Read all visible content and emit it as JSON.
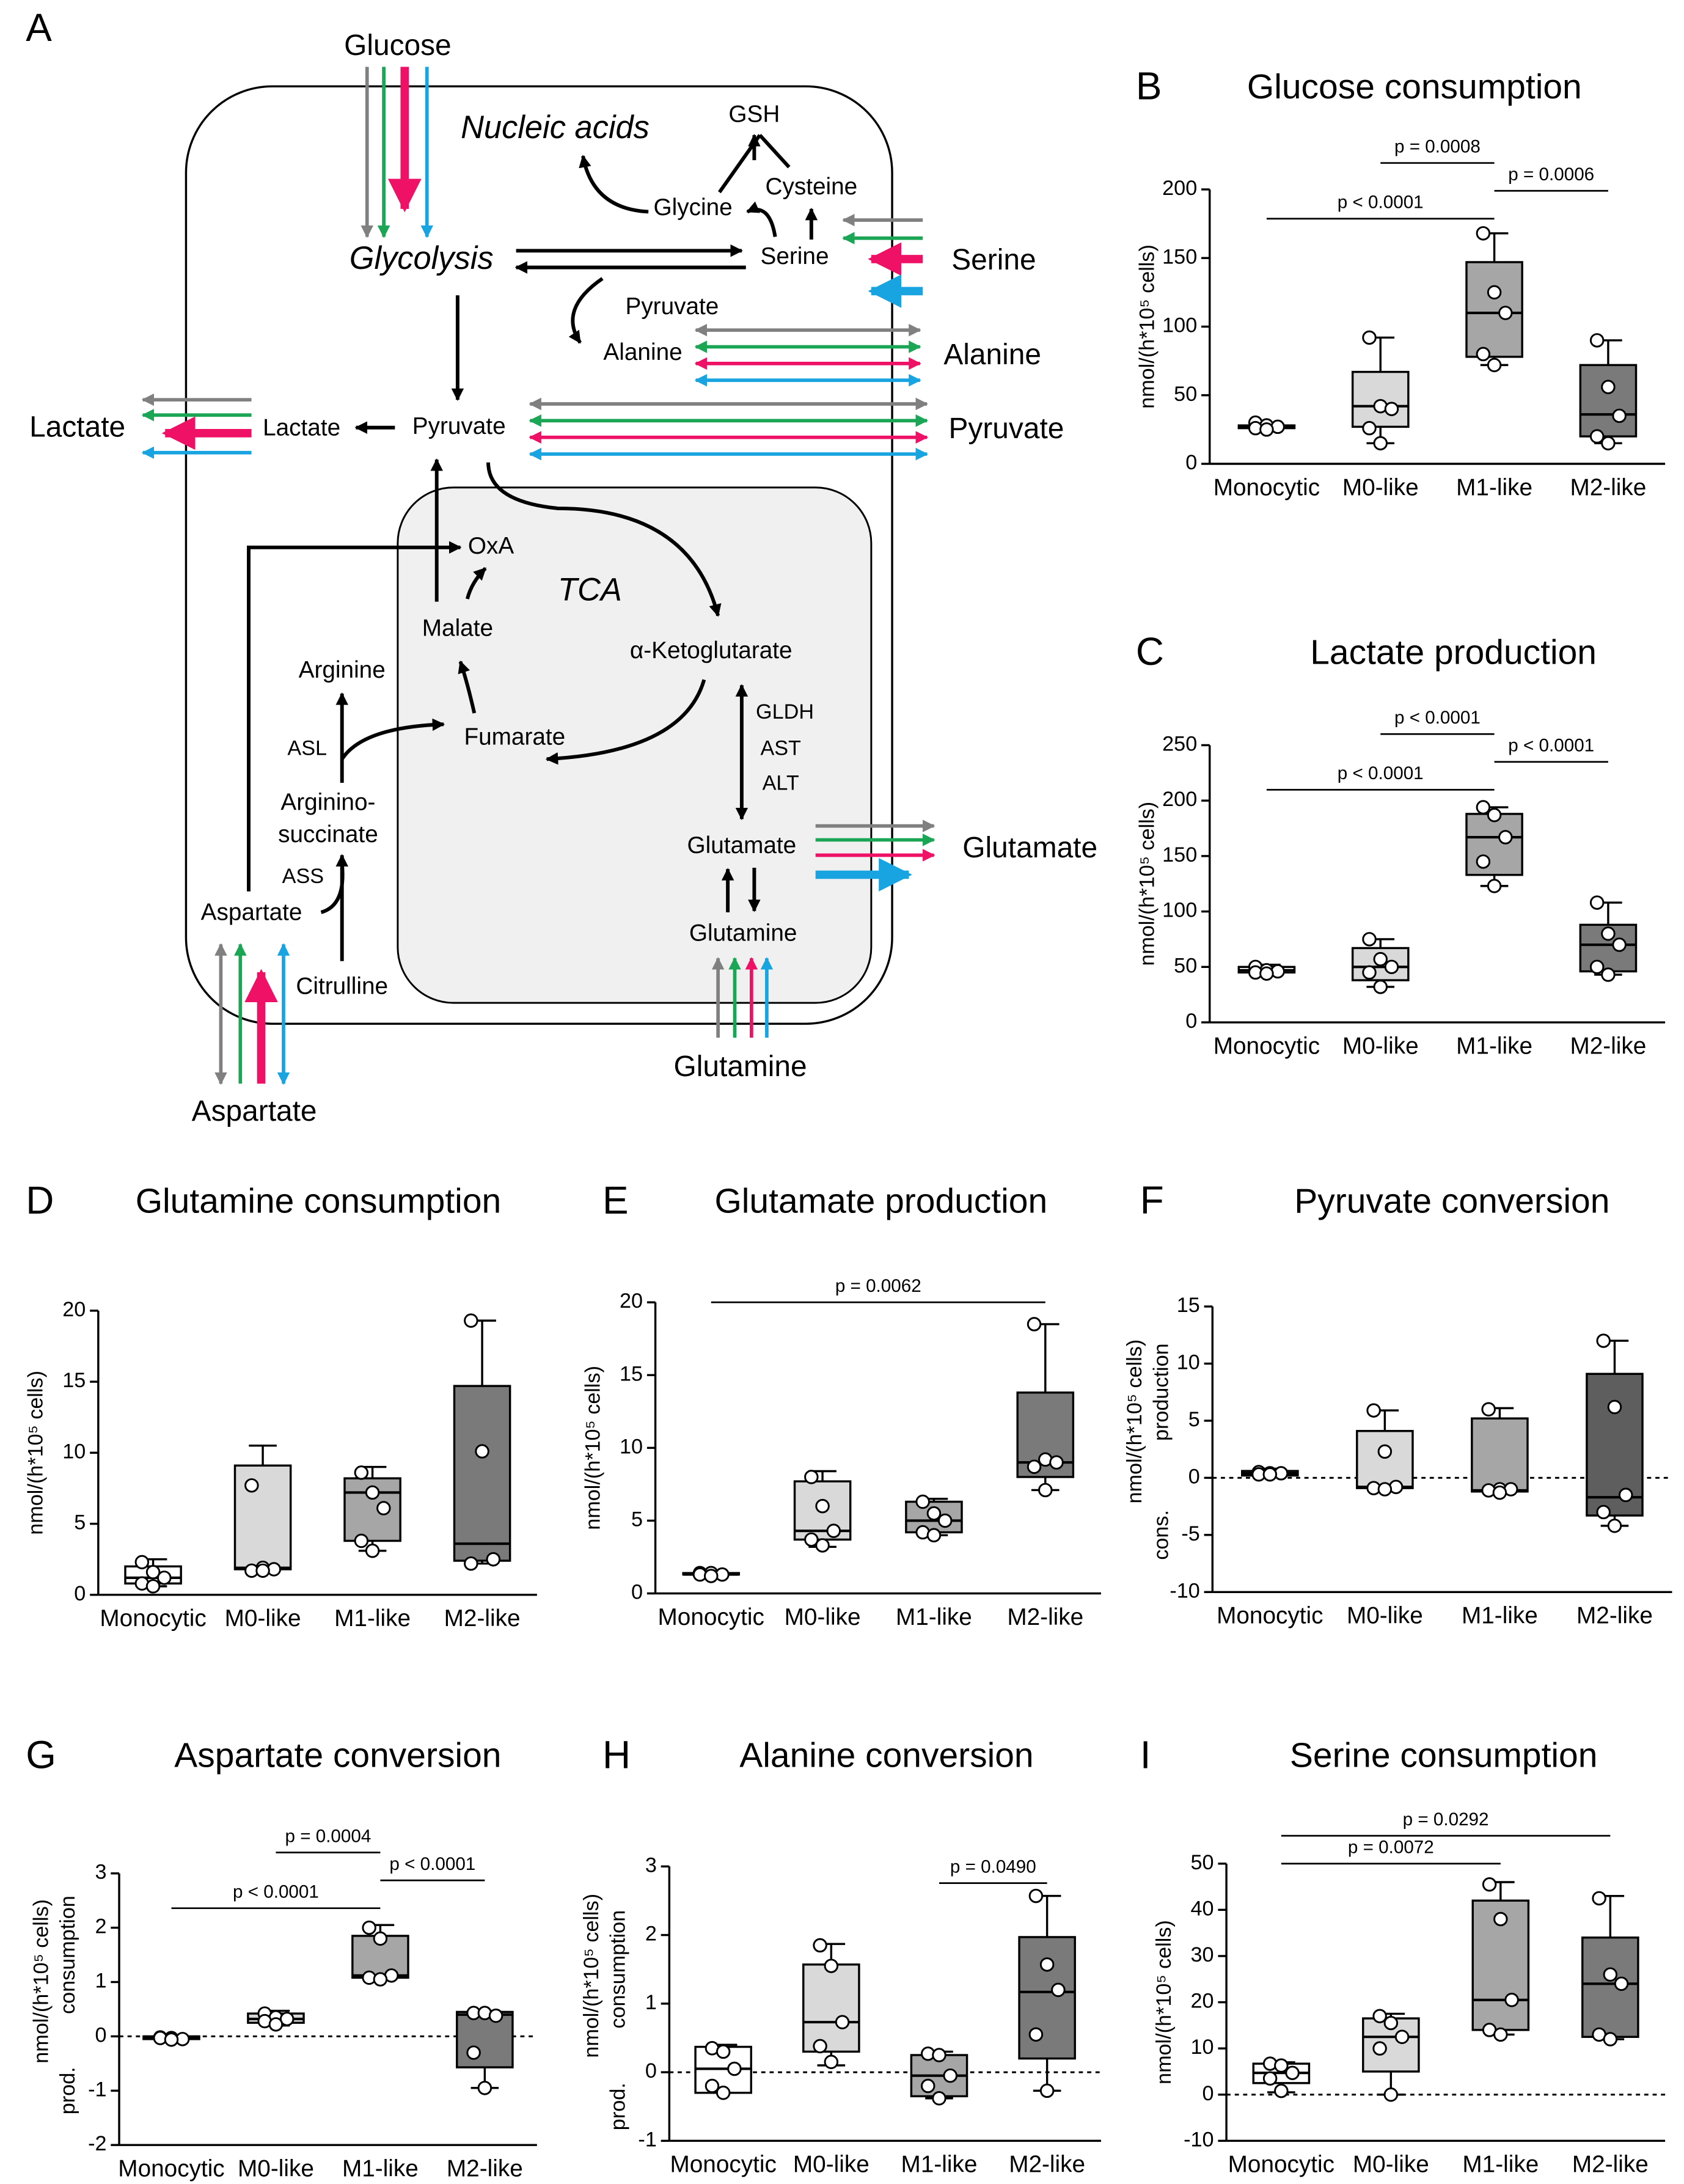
{
  "diagram": {
    "label": "A",
    "texts": {
      "glucose": "Glucose",
      "nucleic_acids": "Nucleic acids",
      "gsh": "GSH",
      "cysteine": "Cysteine",
      "glycine": "Glycine",
      "glycolysis": "Glycolysis",
      "serine_in": "Serine",
      "serine_out": "Serine",
      "pyruvate_small": "Pyruvate",
      "alanine_in": "Alanine",
      "alanine_out": "Alanine",
      "lactate_out": "Lactate",
      "lactate_in": "Lactate",
      "pyruvate_in": "Pyruvate",
      "pyruvate_out": "Pyruvate",
      "oxa": "OxA",
      "tca": "TCA",
      "malate": "Malate",
      "akg": "α-Ketoglutarate",
      "arginine": "Arginine",
      "asl": "ASL",
      "fumarate": "Fumarate",
      "gldh": "GLDH",
      "ast": "AST",
      "alt": "ALT",
      "argininosuccinate_1": "Arginino-",
      "argininosuccinate_2": "succinate",
      "ass": "ASS",
      "glutamate_in": "Glutamate",
      "glutamate_out": "Glutamate",
      "glutamine_in": "Glutamine",
      "glutamine_out": "Glutamine",
      "aspartate_in": "Aspartate",
      "citrulline": "Citrulline",
      "aspartate_out": "Aspartate"
    }
  },
  "chart_data": [
    {
      "type": "box",
      "label": "B",
      "title": "Glucose consumption",
      "y_label": "nmol/(h*10⁵ cells)",
      "categories": [
        "Monocytic",
        "M0-like",
        "M1-like",
        "M2-like"
      ],
      "box_colors": [
        "#ffffff",
        "#d9d9d9",
        "#a6a6a6",
        "#7a7a7a"
      ],
      "ylim": [
        0,
        200
      ],
      "yticks": [
        0,
        50,
        100,
        150,
        200
      ],
      "zero_line": false,
      "boxes": [
        {
          "min": 25,
          "q1": 26,
          "median": 27,
          "q3": 28,
          "max": 30,
          "points": [
            30,
            28,
            27,
            26,
            25
          ]
        },
        {
          "min": 15,
          "q1": 27,
          "median": 42,
          "q3": 67,
          "max": 92,
          "points": [
            92,
            42,
            40,
            26,
            15
          ]
        },
        {
          "min": 72,
          "q1": 78,
          "median": 110,
          "q3": 147,
          "max": 168,
          "points": [
            168,
            125,
            110,
            80,
            72
          ]
        },
        {
          "min": 15,
          "q1": 20,
          "median": 36,
          "q3": 72,
          "max": 90,
          "points": [
            90,
            56,
            35,
            20,
            15
          ]
        }
      ],
      "comparisons": [
        {
          "label": "p < 0.0001",
          "groups": [
            "Monocytic",
            "M1-like"
          ]
        },
        {
          "label": "p = 0.0006",
          "groups": [
            "M1-like",
            "M2-like"
          ]
        },
        {
          "label": "p = 0.0008",
          "groups": [
            "M0-like",
            "M1-like"
          ]
        }
      ]
    },
    {
      "type": "box",
      "label": "C",
      "title": "Lactate production",
      "y_label": "nmol/(h*10⁵ cells)",
      "categories": [
        "Monocytic",
        "M0-like",
        "M1-like",
        "M2-like"
      ],
      "box_colors": [
        "#ffffff",
        "#d9d9d9",
        "#a6a6a6",
        "#7a7a7a"
      ],
      "ylim": [
        0,
        250
      ],
      "yticks": [
        0,
        50,
        100,
        150,
        200,
        250
      ],
      "zero_line": false,
      "boxes": [
        {
          "min": 44,
          "q1": 45,
          "median": 47,
          "q3": 50,
          "max": 52,
          "points": [
            50,
            47,
            46,
            45,
            44
          ]
        },
        {
          "min": 32,
          "q1": 38,
          "median": 50,
          "q3": 67,
          "max": 75,
          "points": [
            75,
            57,
            50,
            45,
            32
          ]
        },
        {
          "min": 123,
          "q1": 133,
          "median": 167,
          "q3": 188,
          "max": 194,
          "points": [
            194,
            187,
            167,
            145,
            123
          ]
        },
        {
          "min": 43,
          "q1": 46,
          "median": 70,
          "q3": 88,
          "max": 108,
          "points": [
            108,
            80,
            70,
            50,
            43
          ]
        }
      ],
      "comparisons": [
        {
          "label": "p < 0.0001",
          "groups": [
            "Monocytic",
            "M1-like"
          ]
        },
        {
          "label": "p < 0.0001",
          "groups": [
            "M1-like",
            "M2-like"
          ]
        },
        {
          "label": "p < 0.0001",
          "groups": [
            "M0-like",
            "M1-like"
          ]
        }
      ]
    },
    {
      "type": "box",
      "label": "D",
      "title": "Glutamine consumption",
      "y_label": "nmol/(h*10⁵ cells)",
      "categories": [
        "Monocytic",
        "M0-like",
        "M1-like",
        "M2-like"
      ],
      "box_colors": [
        "#ffffff",
        "#d9d9d9",
        "#a6a6a6",
        "#7a7a7a"
      ],
      "ylim": [
        0,
        20
      ],
      "yticks": [
        0,
        5,
        10,
        15,
        20
      ],
      "zero_line": false,
      "boxes": [
        {
          "min": 0.6,
          "q1": 0.8,
          "median": 1.2,
          "q3": 2.0,
          "max": 2.5,
          "points": [
            2.3,
            1.6,
            1.2,
            0.8,
            0.6
          ]
        },
        {
          "min": 1.7,
          "q1": 1.8,
          "median": 1.9,
          "q3": 9.1,
          "max": 10.5,
          "points": [
            7.7,
            1.9,
            1.8,
            1.7,
            1.7
          ]
        },
        {
          "min": 3.1,
          "q1": 3.8,
          "median": 7.2,
          "q3": 8.2,
          "max": 9.0,
          "points": [
            8.6,
            7.2,
            6.1,
            3.8,
            3.1
          ]
        },
        {
          "min": 2.2,
          "q1": 2.4,
          "median": 3.6,
          "q3": 14.7,
          "max": 19.3,
          "points": [
            19.3,
            10.1,
            2.5,
            2.2
          ]
        }
      ],
      "comparisons": []
    },
    {
      "type": "box",
      "label": "E",
      "title": "Glutamate production",
      "y_label": "nmol/(h*10⁵ cells)",
      "categories": [
        "Monocytic",
        "M0-like",
        "M1-like",
        "M2-like"
      ],
      "box_colors": [
        "#ffffff",
        "#d9d9d9",
        "#a6a6a6",
        "#7a7a7a"
      ],
      "ylim": [
        0,
        20
      ],
      "yticks": [
        0,
        5,
        10,
        15,
        20
      ],
      "zero_line": false,
      "boxes": [
        {
          "min": 1.2,
          "q1": 1.3,
          "median": 1.3,
          "q3": 1.4,
          "max": 1.5,
          "points": [
            1.4,
            1.4,
            1.3,
            1.3,
            1.2
          ]
        },
        {
          "min": 3.2,
          "q1": 3.7,
          "median": 4.3,
          "q3": 7.7,
          "max": 8.4,
          "points": [
            8.0,
            6.0,
            4.3,
            3.7,
            3.3
          ]
        },
        {
          "min": 4.0,
          "q1": 4.2,
          "median": 5.0,
          "q3": 6.3,
          "max": 6.5,
          "points": [
            6.3,
            5.5,
            5.0,
            4.2,
            4.0
          ]
        },
        {
          "min": 7.1,
          "q1": 8.0,
          "median": 9.0,
          "q3": 13.8,
          "max": 18.5,
          "points": [
            18.5,
            9.2,
            9.0,
            8.7,
            7.1
          ]
        }
      ],
      "comparisons": [
        {
          "label": "p = 0.0062",
          "groups": [
            "Monocytic",
            "M2-like"
          ]
        }
      ]
    },
    {
      "type": "box",
      "label": "F",
      "title": "Pyruvate conversion",
      "y_label": "nmol/(h*10⁵ cells)",
      "y_label_upper": "production",
      "y_label_lower": "cons.",
      "categories": [
        "Monocytic",
        "M0-like",
        "M1-like",
        "M2-like"
      ],
      "box_colors": [
        "#ffffff",
        "#d9d9d9",
        "#a6a6a6",
        "#5e5e5e"
      ],
      "ylim": [
        -10,
        15
      ],
      "yticks": [
        -10,
        -5,
        0,
        5,
        10,
        15
      ],
      "zero_line": true,
      "boxes": [
        {
          "min": 0.1,
          "q1": 0.2,
          "median": 0.4,
          "q3": 0.6,
          "max": 0.8,
          "points": [
            0.5,
            0.4,
            0.4,
            0.3,
            0.3
          ]
        },
        {
          "min": -1.0,
          "q1": -0.9,
          "median": -0.8,
          "q3": 4.1,
          "max": 5.9,
          "points": [
            5.9,
            2.3,
            -0.8,
            -0.9,
            -1.0
          ]
        },
        {
          "min": -1.3,
          "q1": -1.2,
          "median": -1.1,
          "q3": 5.2,
          "max": 6.1,
          "points": [
            6.0,
            -1.0,
            -1.0,
            -1.1,
            -1.3
          ]
        },
        {
          "min": -4.2,
          "q1": -3.3,
          "median": -1.7,
          "q3": 9.1,
          "max": 12.0,
          "points": [
            12.0,
            6.2,
            -1.5,
            -3.0,
            -4.2
          ]
        }
      ],
      "comparisons": []
    },
    {
      "type": "box",
      "label": "G",
      "title": "Aspartate conversion",
      "y_label": "nmol/(h*10⁵ cells)",
      "y_label_upper": "consumption",
      "y_label_lower": "prod.",
      "categories": [
        "Monocytic",
        "M0-like",
        "M1-like",
        "M2-like"
      ],
      "box_colors": [
        "#ffffff",
        "#d9d9d9",
        "#a6a6a6",
        "#7a7a7a"
      ],
      "ylim": [
        -2,
        3
      ],
      "yticks": [
        -2,
        -1,
        0,
        1,
        2,
        3
      ],
      "zero_line": true,
      "boxes": [
        {
          "min": -0.07,
          "q1": -0.05,
          "median": -0.03,
          "q3": 0,
          "max": 0.02,
          "points": [
            -0.02,
            -0.03,
            -0.05,
            -0.03,
            -0.06
          ]
        },
        {
          "min": 0.2,
          "q1": 0.25,
          "median": 0.32,
          "q3": 0.42,
          "max": 0.47,
          "points": [
            0.42,
            0.35,
            0.32,
            0.28,
            0.22
          ]
        },
        {
          "min": 1.05,
          "q1": 1.08,
          "median": 1.12,
          "q3": 1.85,
          "max": 2.05,
          "points": [
            2.0,
            1.8,
            1.12,
            1.08,
            1.05
          ]
        },
        {
          "min": -0.95,
          "q1": -0.57,
          "median": 0.4,
          "q3": 0.45,
          "max": 0.45,
          "points": [
            0.43,
            0.43,
            0.38,
            -0.3,
            -0.95
          ]
        }
      ],
      "comparisons": [
        {
          "label": "p < 0.0001",
          "groups": [
            "Monocytic",
            "M1-like"
          ]
        },
        {
          "label": "p < 0.0001",
          "groups": [
            "M1-like",
            "M2-like"
          ]
        },
        {
          "label": "p = 0.0004",
          "groups": [
            "M0-like",
            "M1-like"
          ]
        }
      ]
    },
    {
      "type": "box",
      "label": "H",
      "title": "Alanine conversion",
      "y_label": "nmol/(h*10⁵ cells)",
      "y_label_upper": "consumption",
      "y_label_lower": "prod.",
      "categories": [
        "Monocytic",
        "M0-like",
        "M1-like",
        "M2-like"
      ],
      "box_colors": [
        "#ffffff",
        "#d9d9d9",
        "#a6a6a6",
        "#7a7a7a"
      ],
      "ylim": [
        -1,
        3
      ],
      "yticks": [
        -1,
        0,
        1,
        2,
        3
      ],
      "zero_line": true,
      "boxes": [
        {
          "min": -0.3,
          "q1": -0.3,
          "median": 0.05,
          "q3": 0.37,
          "max": 0.4,
          "points": [
            0.35,
            0.3,
            0.05,
            -0.2,
            -0.3
          ]
        },
        {
          "min": 0.1,
          "q1": 0.3,
          "median": 0.73,
          "q3": 1.57,
          "max": 1.87,
          "points": [
            1.85,
            1.55,
            0.73,
            0.38,
            0.15
          ]
        },
        {
          "min": -0.38,
          "q1": -0.35,
          "median": -0.05,
          "q3": 0.25,
          "max": 0.3,
          "points": [
            0.27,
            0.25,
            -0.05,
            -0.2,
            -0.38
          ]
        },
        {
          "min": -0.27,
          "q1": 0.2,
          "median": 1.17,
          "q3": 1.97,
          "max": 2.57,
          "points": [
            2.57,
            1.57,
            1.2,
            0.55,
            -0.27
          ]
        }
      ],
      "comparisons": [
        {
          "label": "p = 0.0490",
          "groups": [
            "M1-like",
            "M2-like"
          ]
        }
      ]
    },
    {
      "type": "box",
      "label": "I",
      "title": "Serine consumption",
      "y_label": "nmol/(h*10⁵ cells)",
      "categories": [
        "Monocytic",
        "M0-like",
        "M1-like",
        "M2-like"
      ],
      "box_colors": [
        "#ffffff",
        "#d9d9d9",
        "#a6a6a6",
        "#7a7a7a"
      ],
      "ylim": [
        -10,
        50
      ],
      "yticks": [
        -10,
        0,
        10,
        20,
        30,
        40,
        50
      ],
      "zero_line": true,
      "boxes": [
        {
          "min": 0.5,
          "q1": 2.5,
          "median": 4.7,
          "q3": 6.7,
          "max": 7.0,
          "points": [
            6.7,
            6.3,
            4.7,
            3.5,
            0.8
          ]
        },
        {
          "min": 0,
          "q1": 5,
          "median": 12.5,
          "q3": 16.5,
          "max": 17.5,
          "points": [
            17,
            15.5,
            12.5,
            10,
            0
          ]
        },
        {
          "min": 13,
          "q1": 14,
          "median": 20.5,
          "q3": 42,
          "max": 46,
          "points": [
            45.5,
            38,
            20.5,
            14,
            13
          ]
        },
        {
          "min": 12,
          "q1": 12.5,
          "median": 24,
          "q3": 34,
          "max": 43,
          "points": [
            42.5,
            26,
            24,
            13,
            12
          ]
        }
      ],
      "comparisons": [
        {
          "label": "p = 0.0072",
          "groups": [
            "Monocytic",
            "M1-like"
          ]
        },
        {
          "label": "p = 0.0292",
          "groups": [
            "Monocytic",
            "M2-like"
          ]
        }
      ]
    }
  ]
}
